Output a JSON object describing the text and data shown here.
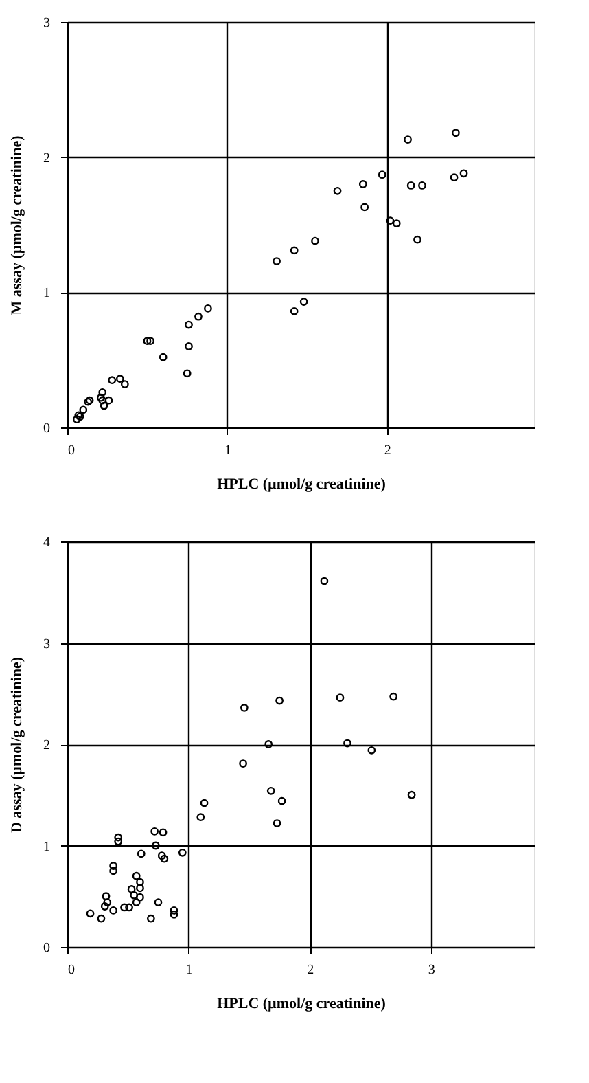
{
  "chart_data": [
    {
      "type": "scatter",
      "xlabel": "HPLC (µmol/g creatinine)",
      "ylabel": "M assay (µmol/g creatinine)",
      "xlim": [
        0,
        2.92
      ],
      "xticks": [
        0,
        1,
        2
      ],
      "ylim": [
        0,
        3
      ],
      "yticks": [
        0,
        1,
        2,
        3
      ],
      "grid": true,
      "marker": "circle",
      "series": [
        {
          "color": "#000000",
          "x": [
            0.06,
            0.08,
            0.07,
            0.1,
            0.13,
            0.14,
            0.21,
            0.22,
            0.23,
            0.26,
            0.22,
            0.28,
            0.33,
            0.36,
            0.5,
            0.52,
            0.6,
            0.75,
            0.76,
            0.76,
            0.82,
            0.88,
            1.31,
            1.42,
            1.42,
            1.48,
            1.55,
            1.69,
            1.85,
            1.86,
            1.97,
            2.02,
            2.06,
            2.13,
            2.15,
            2.22,
            2.19,
            2.42,
            2.48,
            2.43
          ],
          "values": [
            0.06,
            0.08,
            0.09,
            0.13,
            0.19,
            0.2,
            0.22,
            0.2,
            0.16,
            0.2,
            0.26,
            0.35,
            0.36,
            0.32,
            0.64,
            0.64,
            0.52,
            0.4,
            0.6,
            0.76,
            0.82,
            0.88,
            1.23,
            1.31,
            0.86,
            0.93,
            1.38,
            1.75,
            1.8,
            1.63,
            1.87,
            1.53,
            1.51,
            2.13,
            1.79,
            1.79,
            1.39,
            1.85,
            1.88,
            2.18
          ]
        }
      ]
    },
    {
      "type": "scatter",
      "xlabel": "HPLC (µmol/g creatinine)",
      "ylabel": "D assay (µmol/g creatinine)",
      "xlim": [
        0,
        3.85
      ],
      "xticks": [
        0,
        1,
        2,
        3
      ],
      "ylim": [
        0,
        4
      ],
      "yticks": [
        0,
        1,
        2,
        3,
        4
      ],
      "grid": true,
      "marker": "circle",
      "series": [
        {
          "color": "#000000",
          "x": [
            2.12,
            1.46,
            1.75,
            2.25,
            2.69,
            1.66,
            2.31,
            2.51,
            1.45,
            1.68,
            1.77,
            1.13,
            1.1,
            1.73,
            2.84,
            0.42,
            0.42,
            0.72,
            0.79,
            0.73,
            0.78,
            0.8,
            0.95,
            0.61,
            0.38,
            0.38,
            0.57,
            0.6,
            0.53,
            0.6,
            0.55,
            0.6,
            0.32,
            0.33,
            0.31,
            0.38,
            0.47,
            0.51,
            0.57,
            0.75,
            0.19,
            0.28,
            0.69,
            0.88,
            0.88
          ],
          "values": [
            3.61,
            2.36,
            2.43,
            2.46,
            2.47,
            2.0,
            2.01,
            1.94,
            1.81,
            1.54,
            1.44,
            1.42,
            1.28,
            1.22,
            1.5,
            1.08,
            1.04,
            1.14,
            1.13,
            1.0,
            0.9,
            0.87,
            0.93,
            0.92,
            0.8,
            0.75,
            0.7,
            0.64,
            0.57,
            0.58,
            0.51,
            0.49,
            0.5,
            0.44,
            0.4,
            0.36,
            0.39,
            0.39,
            0.44,
            0.44,
            0.33,
            0.28,
            0.28,
            0.36,
            0.32
          ]
        }
      ]
    }
  ]
}
